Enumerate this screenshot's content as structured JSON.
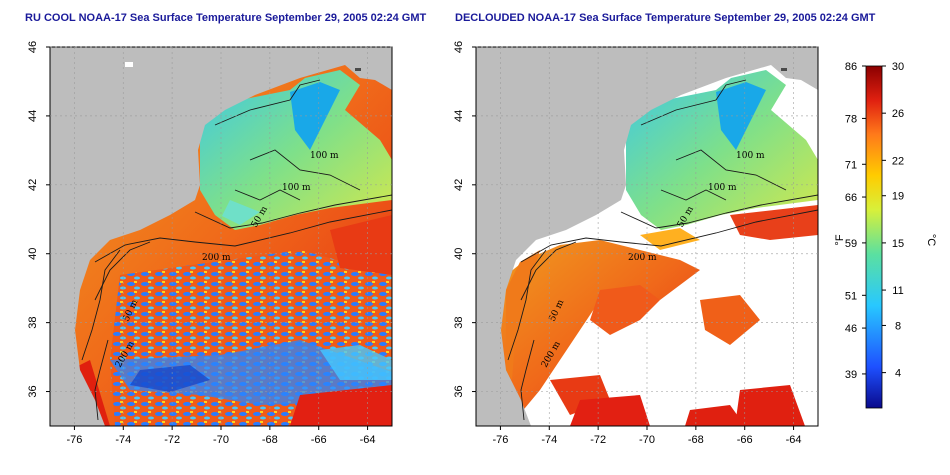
{
  "panels": [
    {
      "title": "RU COOL NOAA-17 Sea Surface Temperature September 29, 2005 02:24 GMT",
      "contour_labels": [
        "100 m",
        "100 m",
        "50 m",
        "200 m",
        "50 m",
        "200 m"
      ]
    },
    {
      "title": "DECLOUDED NOAA-17 Sea Surface Temperature September 29, 2005 02:24 GMT",
      "contour_labels": [
        "100 m",
        "100 m",
        "50 m",
        "200 m",
        "50 m",
        "200 m"
      ]
    }
  ],
  "axes": {
    "x_ticks": [
      "-76",
      "-74",
      "-72",
      "-70",
      "-68",
      "-66",
      "-64"
    ],
    "y_ticks": [
      "36",
      "38",
      "40",
      "42",
      "44",
      "46"
    ]
  },
  "colorbar": {
    "fahrenheit_label": "°F",
    "celsius_label": "°C",
    "fahrenheit_ticks": [
      "86",
      "78",
      "71",
      "66",
      "59",
      "51",
      "46",
      "39"
    ],
    "celsius_ticks": [
      "30",
      "26",
      "22",
      "19",
      "15",
      "11",
      "8",
      "4"
    ],
    "colors": [
      "#0a0a8c",
      "#1e50ff",
      "#28c8ff",
      "#5be0a0",
      "#d8f03a",
      "#ffcc00",
      "#ff7a1a",
      "#e02010",
      "#8b0000"
    ]
  },
  "colors": {
    "land": "#bdbdbd",
    "title": "#1a1a9a"
  }
}
